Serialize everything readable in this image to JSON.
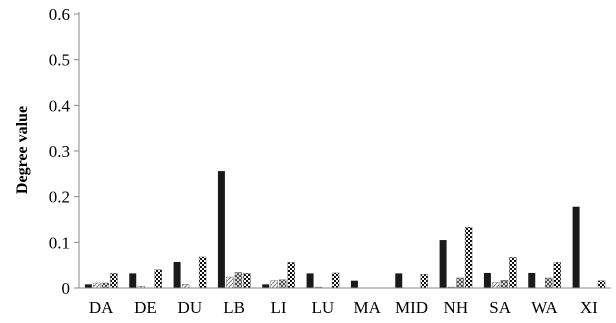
{
  "chart_data": {
    "type": "bar",
    "title": "",
    "xlabel": "",
    "ylabel": "Degree value",
    "ylim": [
      0,
      0.6
    ],
    "yticks": [
      "0",
      "0.1",
      "0.2",
      "0.3",
      "0.4",
      "0.5",
      "0.6"
    ],
    "grid": false,
    "legend": "none",
    "categories": [
      "DA",
      "DE",
      "DU",
      "LB",
      "LI",
      "LU",
      "MA",
      "MID",
      "NH",
      "SA",
      "WA",
      "XI"
    ],
    "series": [
      {
        "fill": "solid",
        "color": "#1a1a1a",
        "values": [
          0.008,
          0.032,
          0.057,
          0.256,
          0.008,
          0.032,
          0.016,
          0.032,
          0.105,
          0.033,
          0.033,
          0.178
        ]
      },
      {
        "fill": "diagonal-light",
        "color": "#888888",
        "values": [
          0.011,
          0.004,
          0.008,
          0.024,
          0.016,
          0.002,
          0.0,
          0.0,
          0.002,
          0.012,
          0.0,
          0.0
        ]
      },
      {
        "fill": "crosshatch",
        "color": "#555555",
        "values": [
          0.011,
          0.0,
          0.0,
          0.034,
          0.018,
          0.0,
          0.0,
          0.0,
          0.022,
          0.017,
          0.022,
          0.0
        ]
      },
      {
        "fill": "checker-dots",
        "color": "#333333",
        "values": [
          0.032,
          0.04,
          0.068,
          0.032,
          0.056,
          0.033,
          0.0,
          0.03,
          0.133,
          0.067,
          0.056,
          0.016
        ]
      }
    ]
  }
}
